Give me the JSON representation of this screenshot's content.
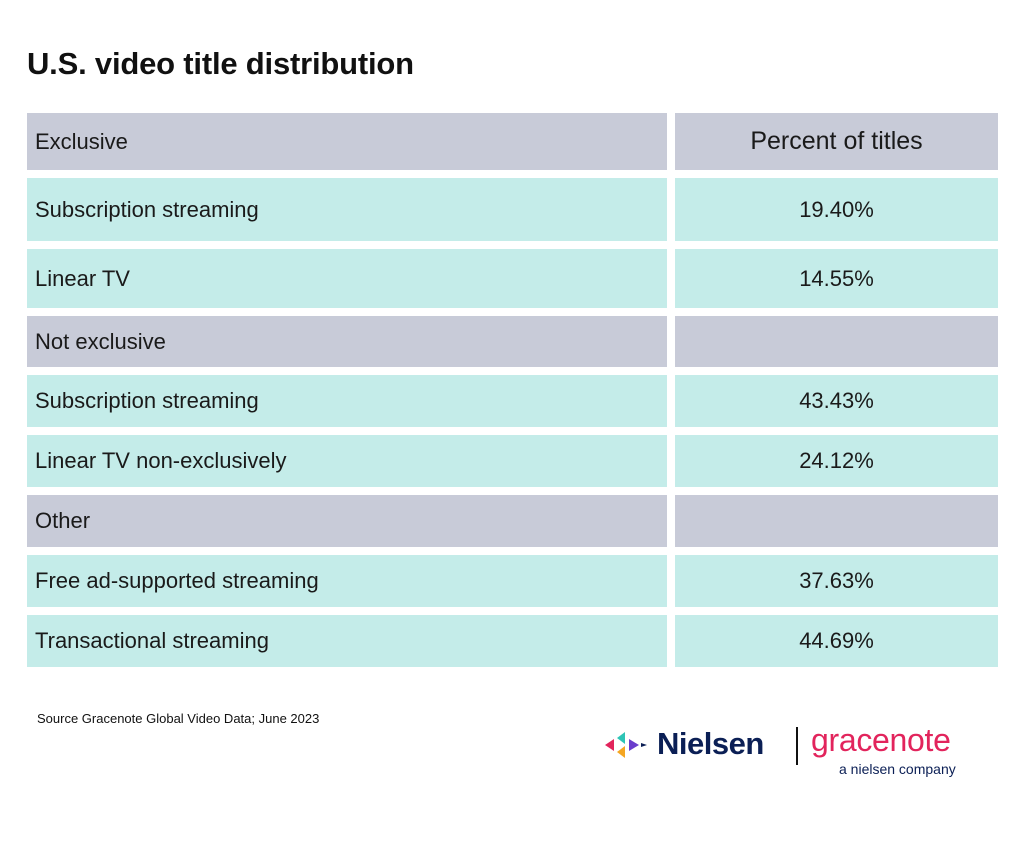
{
  "title": "U.S. video title distribution",
  "table": {
    "rows": [
      {
        "type": "header",
        "label": "Exclusive",
        "value": "Percent of titles"
      },
      {
        "type": "data",
        "label": "Subscription streaming",
        "value": "19.40%"
      },
      {
        "type": "data",
        "label": "Linear TV",
        "value": "14.55%"
      },
      {
        "type": "section",
        "label": "Not exclusive",
        "value": ""
      },
      {
        "type": "data",
        "label": "Subscription streaming",
        "value": "43.43%"
      },
      {
        "type": "data",
        "label": "Linear TV non-exclusively",
        "value": "24.12%"
      },
      {
        "type": "section",
        "label": "Other",
        "value": ""
      },
      {
        "type": "data",
        "label": "Free ad-supported streaming",
        "value": "37.63%"
      },
      {
        "type": "data",
        "label": "Transactional streaming",
        "value": "44.69%"
      }
    ]
  },
  "source": "Source Gracenote Global Video Data; June 2023",
  "logo": {
    "nielsen": "Nielsen",
    "gracenote": "gracenote",
    "tagline": "a nielsen company"
  },
  "colors": {
    "header_bg": "#c8cbd8",
    "data_bg": "#c4ece9",
    "nielsen_navy": "#0b1f55",
    "gracenote_pink": "#e2245c"
  }
}
